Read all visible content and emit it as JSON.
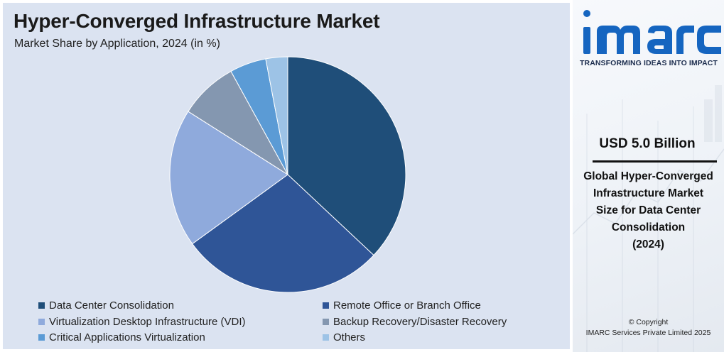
{
  "header": {
    "title": "Hyper-Converged Infrastructure Market",
    "subtitle": "Market Share by Application, 2024 (in %)"
  },
  "chart_data": {
    "type": "pie",
    "title": "Hyper-Converged Infrastructure Market",
    "subtitle": "Market Share by Application, 2024 (in %)",
    "start_angle_deg": 0,
    "direction": "clockwise",
    "slices": [
      {
        "label": "Data Center Consolidation",
        "value": 37,
        "color": "#1f4e79"
      },
      {
        "label": "Remote Office or Branch Office",
        "value": 28,
        "color": "#2f5597"
      },
      {
        "label": "Virtualization Desktop Infrastructure (VDI)",
        "value": 19,
        "color": "#8faadc"
      },
      {
        "label": "Backup Recovery/Disaster Recovery",
        "value": 8,
        "color": "#8497b0"
      },
      {
        "label": "Critical Applications Virtualization",
        "value": 5,
        "color": "#5b9bd5"
      },
      {
        "label": "Others",
        "value": 3,
        "color": "#9dc3e6"
      }
    ],
    "legend_position": "bottom"
  },
  "sidebar": {
    "logo_text": "imarc",
    "tagline": "TRANSFORMING IDEAS INTO IMPACT",
    "market_value": "USD 5.0 Billion",
    "caption_lines": [
      "Global Hyper-Converged",
      "Infrastructure Market",
      "Size for Data Center",
      "Consolidation",
      "(2024)"
    ],
    "copyright_line1": "© Copyright",
    "copyright_line2": "IMARC Services Private Limited 2025"
  },
  "colors": {
    "panel_bg": "#dbe3f1",
    "logo_blue": "#1565c0"
  }
}
